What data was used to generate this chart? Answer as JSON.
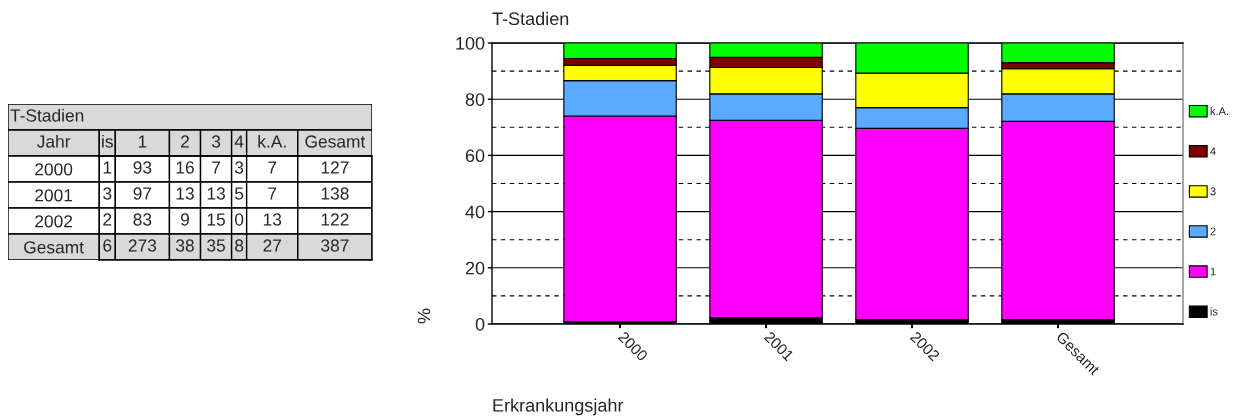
{
  "chart_data": [
    {
      "type": "heatmap",
      "title": "T-Stadien",
      "ylabel": "Jahr",
      "categories": [
        "is",
        "1",
        "2",
        "3",
        "4",
        "k.A.",
        "Gesamt"
      ],
      "y_categories": [
        "2000",
        "2001",
        "2002",
        "Gesamt"
      ],
      "cells": [
        [
          1,
          93,
          16,
          7,
          3,
          7,
          127
        ],
        [
          3,
          97,
          13,
          13,
          5,
          7,
          138
        ],
        [
          2,
          83,
          9,
          15,
          0,
          13,
          122
        ],
        [
          6,
          273,
          38,
          35,
          8,
          27,
          387
        ]
      ],
      "data_labels": true
    },
    {
      "type": "bar",
      "title": "T-Stadien",
      "xlabel": "Erkrankungsjahr",
      "ylabel": "%",
      "categories": [
        "2000",
        "2001",
        "2002",
        "Gesamt"
      ],
      "stacked": true,
      "series": [
        {
          "name": "is",
          "color": "#000000",
          "values": [
            0.8,
            2.2,
            1.6,
            1.6
          ]
        },
        {
          "name": "1",
          "color": "#ff00ff",
          "values": [
            73.2,
            70.3,
            68.0,
            70.5
          ]
        },
        {
          "name": "2",
          "color": "#5aaaff",
          "values": [
            12.6,
            9.4,
            7.4,
            9.8
          ]
        },
        {
          "name": "3",
          "color": "#ffff00",
          "values": [
            5.5,
            9.4,
            12.3,
            9.0
          ]
        },
        {
          "name": "4",
          "color": "#800000",
          "values": [
            2.4,
            3.6,
            0.0,
            2.1
          ]
        },
        {
          "name": "k.A.",
          "color": "#00ff00",
          "values": [
            5.5,
            5.1,
            10.7,
            7.0
          ]
        }
      ],
      "ylim": [
        0,
        100
      ],
      "yticks": [
        0,
        {
          "value": 10,
          "label": null
        },
        20,
        {
          "value": 30,
          "label": null
        },
        40,
        {
          "value": 50,
          "label": null
        },
        60,
        {
          "value": 70,
          "label": null
        },
        80,
        {
          "value": 90,
          "label": null
        },
        100
      ],
      "grid": "y",
      "legend": "right"
    }
  ]
}
